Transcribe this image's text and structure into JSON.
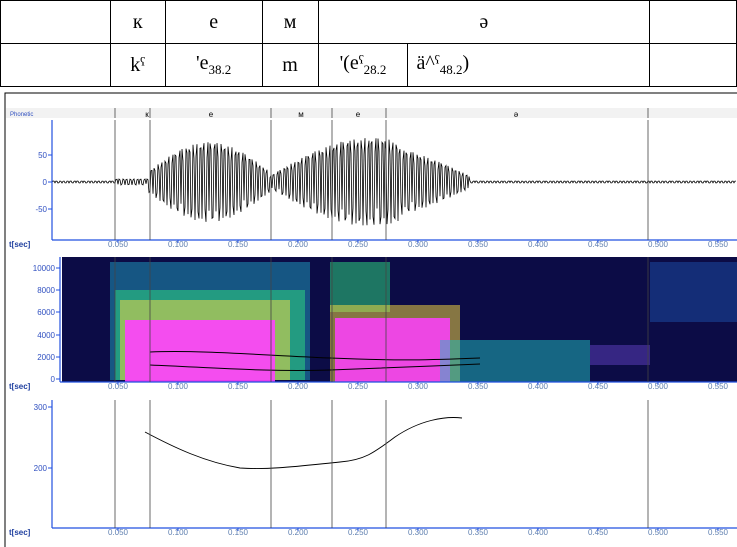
{
  "table": {
    "rows": [
      {
        "cells": [
          {
            "text": "к"
          },
          {
            "text": "е"
          },
          {
            "text": "м"
          },
          {
            "text": "ә"
          }
        ]
      },
      {
        "cells": [
          {
            "text": "kˁ"
          },
          {
            "text": "'e",
            "sub": "38.2"
          },
          {
            "text": "m"
          },
          {
            "text": "'(eˁ",
            "sub": "28.2"
          },
          {
            "text": "ä^ˁ",
            "sub": "48.2",
            "tail": ")"
          }
        ]
      }
    ]
  },
  "figure": {
    "tier_label": "Phonetic",
    "segment_labels": [
      "к",
      "е",
      "м",
      "е",
      "ә"
    ],
    "time_axis_label": "t[sec]",
    "time_ticks": [
      "0.050",
      "0.100",
      "0.150",
      "0.200",
      "0.250",
      "0.300",
      "0.350",
      "0.400",
      "0.450",
      "0.500",
      "0.550"
    ],
    "waveform_ticks": [
      "50",
      "0",
      "-50"
    ],
    "spectrogram_ticks": [
      "10000",
      "8000",
      "6000",
      "4000",
      "2000",
      "0"
    ],
    "pitch_ticks": [
      "300",
      "200"
    ]
  }
}
